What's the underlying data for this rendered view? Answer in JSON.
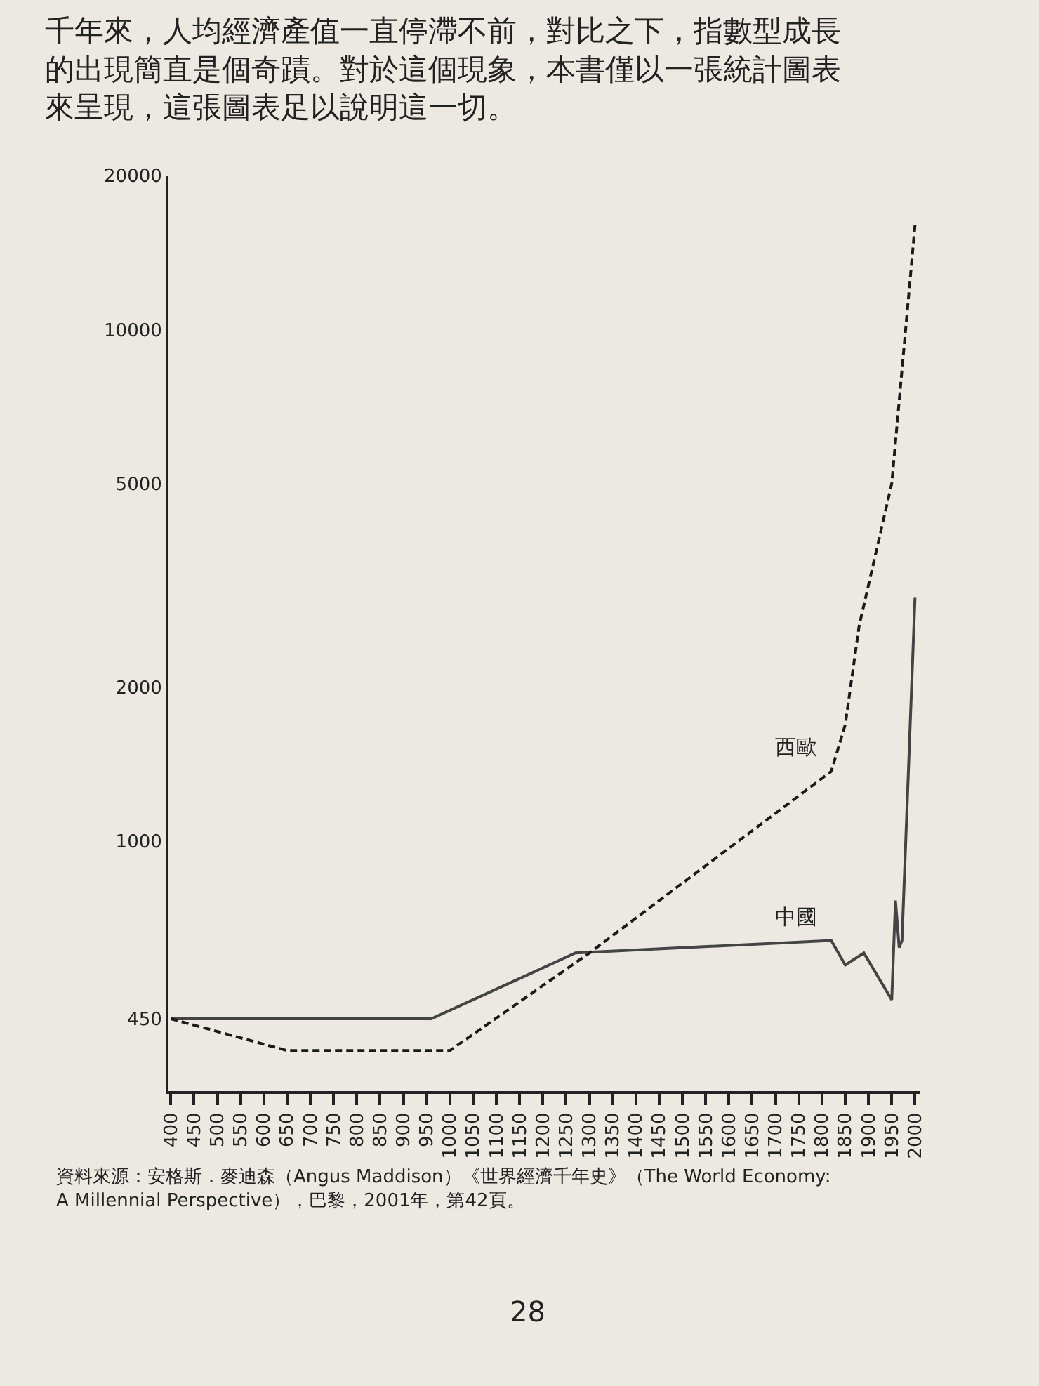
{
  "chart_data": {
    "type": "line",
    "x": [
      400,
      960,
      1270,
      1820,
      1850,
      1890,
      1950,
      1958,
      1966,
      1972,
      2000
    ],
    "series": [
      {
        "name": "中國",
        "color": "#444444",
        "line_style": "solid",
        "values": [
          450,
          450,
          605,
          640,
          573,
          605,
          490,
          766,
          620,
          640,
          3000
        ]
      },
      {
        "name": "西歐",
        "color": "#1a1a1a",
        "line_style": "dashed",
        "x": [
          400,
          650,
          1000,
          1300,
          1820,
          1850,
          1880,
          1950,
          2000
        ],
        "values": [
          450,
          390,
          390,
          605,
          1370,
          1690,
          2640,
          5000,
          16000
        ]
      }
    ],
    "log": "y",
    "ylim": [
      325,
      20000
    ],
    "yticks": [
      450,
      1000,
      2000,
      5000,
      10000,
      20000
    ],
    "xlim": [
      395,
      2010
    ],
    "xticks": [
      400,
      450,
      500,
      550,
      600,
      650,
      700,
      750,
      800,
      850,
      900,
      950,
      1000,
      1050,
      1100,
      1150,
      1200,
      1250,
      1300,
      1350,
      1400,
      1450,
      1500,
      1550,
      1600,
      1650,
      1700,
      1750,
      1800,
      1850,
      1900,
      1950,
      2000
    ],
    "grid": false,
    "legend": false,
    "marker": "none",
    "annotations": [
      "千年來，人均經濟產值一直停滯不前，對比之下，指數型成長的出現簡直是個奇蹟。對於這個現象，本書僅以一張統計圖表來呈現，這張圖表足以說明這一切。",
      "資料來源：安格斯．麥迪森（Angus Maddison）《世界經濟千年史》（The World Economy:\nA Millennial Perspective），巴黎，2001年，第42頁。",
      "28"
    ]
  }
}
